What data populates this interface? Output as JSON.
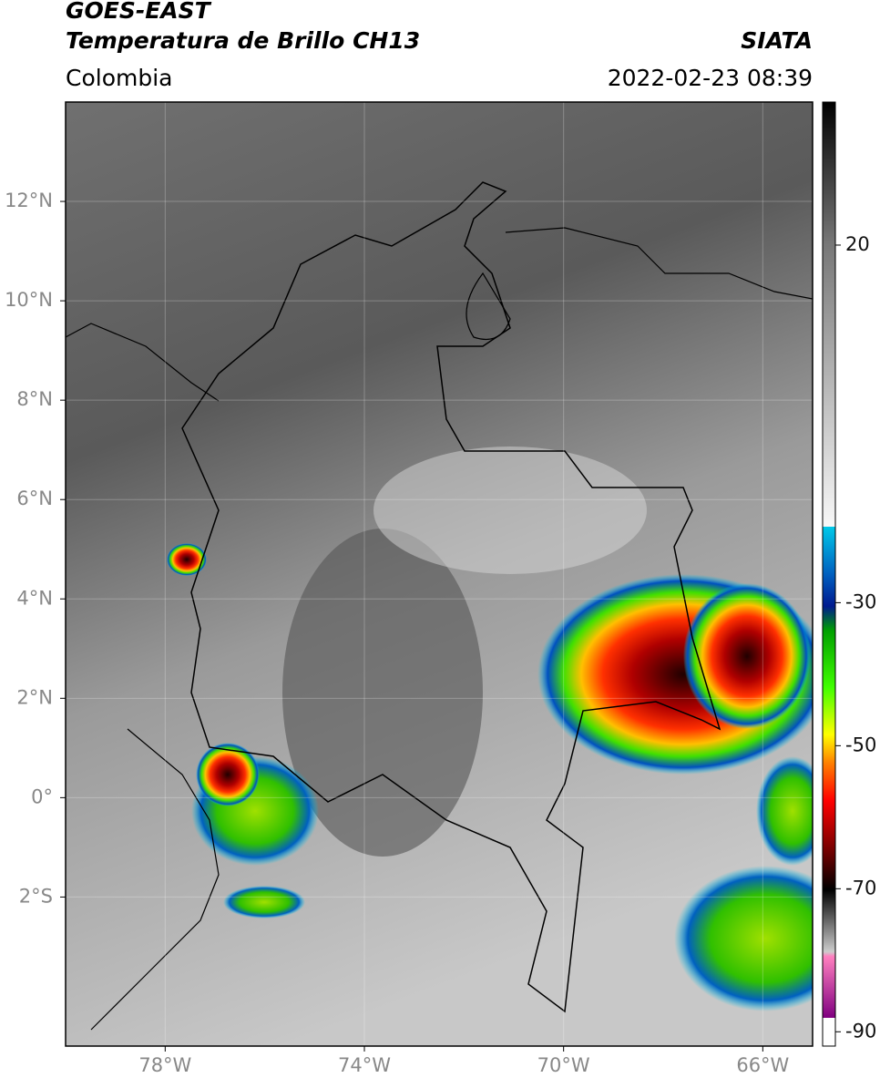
{
  "header": {
    "title": "GOES-EAST",
    "subtitle": "Temperatura de Brillo CH13",
    "source": "SIATA",
    "region": "Colombia",
    "datetime": "2022-02-23 08:39"
  },
  "map": {
    "xlim": [
      -80,
      -65
    ],
    "ylim": [
      -5,
      14
    ],
    "xticks": [
      {
        "value": -78,
        "label": "78°W"
      },
      {
        "value": -74,
        "label": "74°W"
      },
      {
        "value": -70,
        "label": "70°W"
      },
      {
        "value": -66,
        "label": "66°W"
      }
    ],
    "yticks": [
      {
        "value": 12,
        "label": "12°N"
      },
      {
        "value": 10,
        "label": "10°N"
      },
      {
        "value": 8,
        "label": "8°N"
      },
      {
        "value": 6,
        "label": "6°N"
      },
      {
        "value": 4,
        "label": "4°N"
      },
      {
        "value": 2,
        "label": "2°N"
      },
      {
        "value": 0,
        "label": "0°"
      },
      {
        "value": -2,
        "label": "2°S"
      }
    ],
    "grid": true
  },
  "colorbar": {
    "lim": [
      -92,
      40
    ],
    "ticks": [
      20,
      -30,
      -50,
      -70,
      -90
    ]
  }
}
